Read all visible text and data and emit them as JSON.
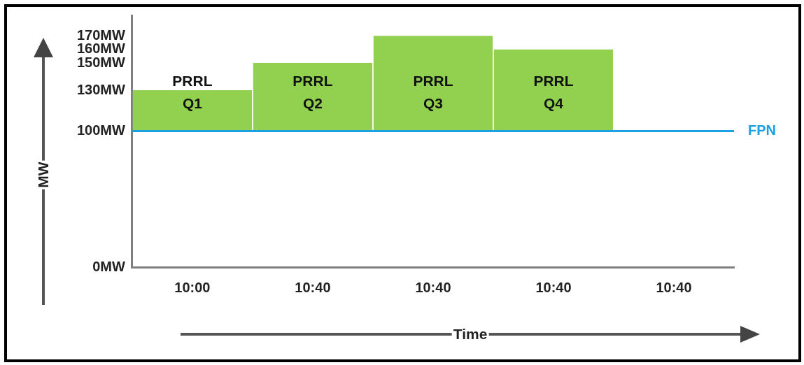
{
  "chart_data": {
    "type": "bar",
    "xlabel": "Time",
    "ylabel": "MW",
    "categories": [
      "10:00",
      "10:40",
      "10:40",
      "10:40",
      "10:40"
    ],
    "base": [
      100,
      100,
      100,
      100,
      null
    ],
    "values": [
      30,
      50,
      70,
      60,
      null
    ],
    "color": "#92d050",
    "ylim": [
      0,
      185
    ],
    "yticks": [
      {
        "value": 0,
        "label": "0MW"
      },
      {
        "value": 100,
        "label": "100MW"
      },
      {
        "value": 130,
        "label": "130MW"
      },
      {
        "value": 150,
        "label": "150MW"
      },
      {
        "value": 160,
        "label": "160MW"
      },
      {
        "value": 170,
        "label": "170MW"
      }
    ],
    "ref_lines": [
      {
        "axis": "y",
        "value": 100,
        "label": "FPN",
        "color": "#1ba1e2"
      }
    ],
    "annotations": [
      "PRRL\nQ1",
      "PRRL\nQ2",
      "PRRL\nQ3",
      "PRRL\nQ4"
    ],
    "grid": false,
    "legend": false
  }
}
